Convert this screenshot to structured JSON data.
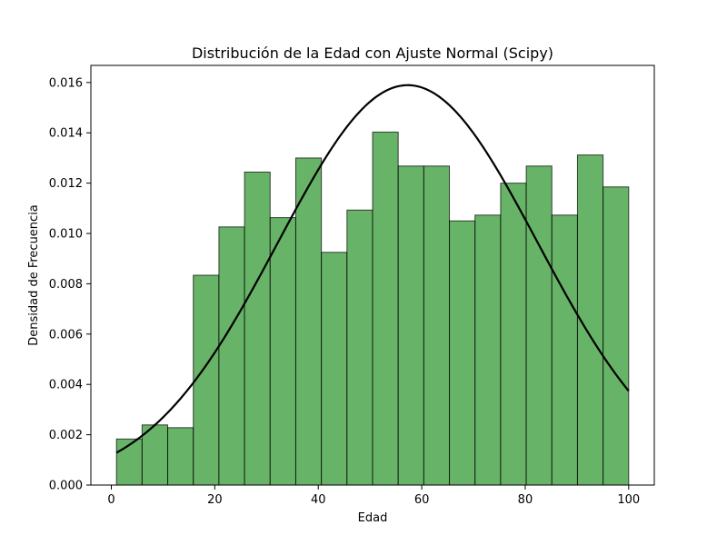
{
  "chart_data": {
    "type": "bar",
    "subtype": "histogram",
    "title": "Distribución de la Edad con Ajuste Normal (Scipy)",
    "xlabel": "Edad",
    "ylabel": "Densidad de Frecuencia",
    "xlim": [
      -3.95,
      104.95
    ],
    "ylim": [
      0,
      0.01668
    ],
    "xticks": [
      0,
      20,
      40,
      60,
      80,
      100
    ],
    "xtick_labels": [
      "0",
      "20",
      "40",
      "60",
      "80",
      "100"
    ],
    "yticks": [
      0,
      0.002,
      0.004,
      0.006,
      0.008,
      0.01,
      0.012,
      0.014,
      0.016
    ],
    "ytick_labels": [
      "0.000",
      "0.002",
      "0.004",
      "0.006",
      "0.008",
      "0.010",
      "0.012",
      "0.014",
      "0.016"
    ],
    "grid": false,
    "bins": {
      "edges": [
        1,
        5.95,
        10.9,
        15.85,
        20.8,
        25.75,
        30.7,
        35.65,
        40.6,
        45.55,
        50.5,
        55.45,
        60.4,
        65.35,
        70.3,
        75.25,
        80.2,
        85.15,
        90.1,
        95.05,
        100
      ],
      "values": [
        0.00183,
        0.00239,
        0.00228,
        0.00834,
        0.01026,
        0.01244,
        0.01063,
        0.013,
        0.00925,
        0.01093,
        0.01403,
        0.01268,
        0.01268,
        0.0105,
        0.01073,
        0.012,
        0.01268,
        0.01073,
        0.01312,
        0.01185
      ],
      "color": "#4ca64c",
      "edge_color": "#000000"
    },
    "fit": {
      "name": "Ajuste Normal",
      "distribution": "normal",
      "mean": 57.3,
      "std": 25.1,
      "x_range": [
        1,
        100
      ],
      "color": "#000000"
    }
  }
}
